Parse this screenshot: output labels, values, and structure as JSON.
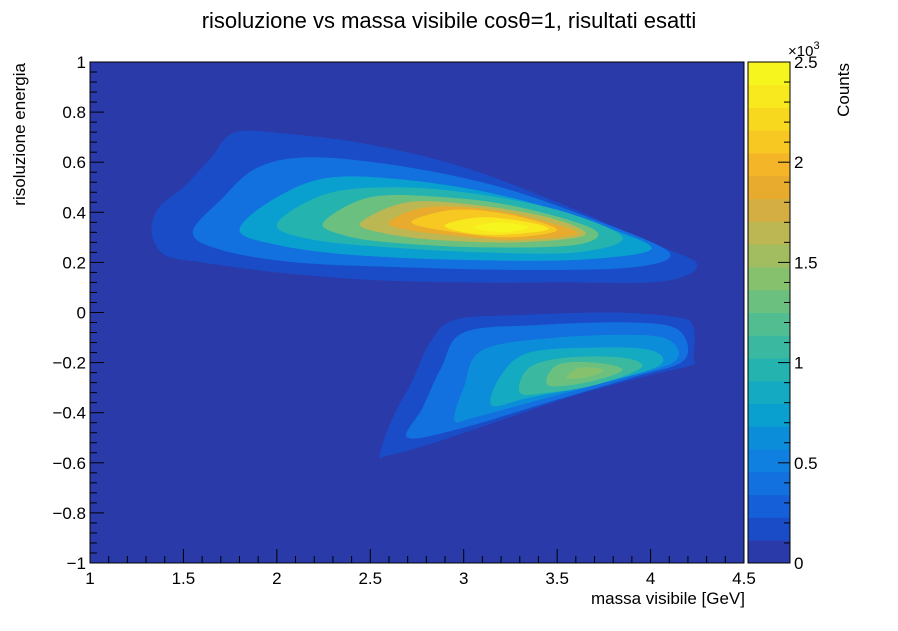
{
  "chart_data": {
    "type": "heatmap",
    "title": "risoluzione vs massa visibile cosθ=1,  risultati esatti",
    "xlabel": "massa visibile [GeV]",
    "ylabel": "risoluzione energia",
    "zlabel": "Counts",
    "zexponent": "×10",
    "zexponent_power": "3",
    "xlim": [
      1,
      4.5
    ],
    "ylim": [
      -1,
      1
    ],
    "zlim": [
      0,
      2.5
    ],
    "x_ticks": [
      {
        "value": 1,
        "label": "1"
      },
      {
        "value": 1.5,
        "label": "1.5"
      },
      {
        "value": 2,
        "label": "2"
      },
      {
        "value": 2.5,
        "label": "2.5"
      },
      {
        "value": 3,
        "label": "3"
      },
      {
        "value": 3.5,
        "label": "3.5"
      },
      {
        "value": 4,
        "label": "4"
      },
      {
        "value": 4.5,
        "label": "4.5"
      }
    ],
    "y_ticks": [
      {
        "value": 1,
        "label": "1"
      },
      {
        "value": 0.8,
        "label": "0.8"
      },
      {
        "value": 0.6,
        "label": "0.6"
      },
      {
        "value": 0.4,
        "label": "0.4"
      },
      {
        "value": 0.2,
        "label": "0.2"
      },
      {
        "value": 0,
        "label": "0"
      },
      {
        "value": -0.2,
        "label": "−0.2"
      },
      {
        "value": -0.4,
        "label": "−0.4"
      },
      {
        "value": -0.6,
        "label": "−0.6"
      },
      {
        "value": -0.8,
        "label": "−0.8"
      },
      {
        "value": -1,
        "label": "−1"
      }
    ],
    "z_ticks": [
      {
        "value": 0,
        "label": "0"
      },
      {
        "value": 0.5,
        "label": "0.5"
      },
      {
        "value": 1,
        "label": "1"
      },
      {
        "value": 1.5,
        "label": "1.5"
      },
      {
        "value": 2,
        "label": "2"
      },
      {
        "value": 2.5,
        "label": "2.5"
      }
    ],
    "palette": [
      "#2a3aa8",
      "#1a4cc8",
      "#1560d8",
      "#1270df",
      "#0f80e0",
      "#0c8dda",
      "#09a0d0",
      "#14aac2",
      "#25b3b0",
      "#3ab9a0",
      "#52bd90",
      "#6cc07f",
      "#86c16e",
      "#a1bd5f",
      "#bcb753",
      "#d4ae42",
      "#e8ab2e",
      "#f4b628",
      "#f7c722",
      "#f8d81e",
      "#f8e81e",
      "#f7f51e"
    ],
    "background_color": "#2a3aa8",
    "regions": [
      {
        "name": "upper-band",
        "peak": {
          "x": 3.15,
          "y": 0.33,
          "z": 2.5
        },
        "boundary": [
          [
            1.33,
            0.32
          ],
          [
            1.37,
            0.42
          ],
          [
            1.5,
            0.5
          ],
          [
            1.65,
            0.62
          ],
          [
            1.78,
            0.72
          ],
          [
            2.1,
            0.71
          ],
          [
            2.5,
            0.67
          ],
          [
            3.0,
            0.58
          ],
          [
            3.5,
            0.44
          ],
          [
            4.0,
            0.28
          ],
          [
            4.2,
            0.22
          ],
          [
            4.25,
            0.19
          ],
          [
            4.2,
            0.15
          ],
          [
            4.0,
            0.12
          ],
          [
            3.5,
            0.12
          ],
          [
            3.0,
            0.12
          ],
          [
            2.5,
            0.13
          ],
          [
            2.0,
            0.16
          ],
          [
            1.6,
            0.2
          ],
          [
            1.4,
            0.23
          ]
        ],
        "levels": [
          {
            "z": 0.15,
            "polygon": [
              [
                1.33,
                0.32
              ],
              [
                1.37,
                0.42
              ],
              [
                1.5,
                0.5
              ],
              [
                1.65,
                0.62
              ],
              [
                1.78,
                0.72
              ],
              [
                2.1,
                0.71
              ],
              [
                2.5,
                0.67
              ],
              [
                3.0,
                0.58
              ],
              [
                3.5,
                0.44
              ],
              [
                4.0,
                0.28
              ],
              [
                4.2,
                0.22
              ],
              [
                4.25,
                0.19
              ],
              [
                4.2,
                0.15
              ],
              [
                4.0,
                0.12
              ],
              [
                3.5,
                0.12
              ],
              [
                3.0,
                0.12
              ],
              [
                2.5,
                0.13
              ],
              [
                2.0,
                0.16
              ],
              [
                1.6,
                0.2
              ],
              [
                1.4,
                0.23
              ]
            ]
          },
          {
            "z": 0.4,
            "polygon": [
              [
                1.55,
                0.32
              ],
              [
                1.7,
                0.45
              ],
              [
                1.9,
                0.58
              ],
              [
                2.2,
                0.62
              ],
              [
                2.7,
                0.58
              ],
              [
                3.2,
                0.5
              ],
              [
                3.7,
                0.37
              ],
              [
                4.1,
                0.24
              ],
              [
                3.9,
                0.18
              ],
              [
                3.3,
                0.17
              ],
              [
                2.7,
                0.18
              ],
              [
                2.1,
                0.2
              ],
              [
                1.7,
                0.25
              ]
            ]
          },
          {
            "z": 0.7,
            "polygon": [
              [
                1.8,
                0.33
              ],
              [
                2.0,
                0.46
              ],
              [
                2.3,
                0.54
              ],
              [
                2.8,
                0.52
              ],
              [
                3.3,
                0.45
              ],
              [
                3.8,
                0.33
              ],
              [
                4.0,
                0.25
              ],
              [
                3.6,
                0.21
              ],
              [
                3.0,
                0.21
              ],
              [
                2.4,
                0.23
              ],
              [
                2.0,
                0.27
              ]
            ]
          },
          {
            "z": 1.0,
            "polygon": [
              [
                2.0,
                0.35
              ],
              [
                2.25,
                0.47
              ],
              [
                2.6,
                0.5
              ],
              [
                3.0,
                0.48
              ],
              [
                3.5,
                0.41
              ],
              [
                3.85,
                0.3
              ],
              [
                3.6,
                0.24
              ],
              [
                3.1,
                0.24
              ],
              [
                2.6,
                0.26
              ],
              [
                2.2,
                0.29
              ]
            ]
          },
          {
            "z": 1.3,
            "polygon": [
              [
                2.25,
                0.36
              ],
              [
                2.5,
                0.46
              ],
              [
                2.9,
                0.46
              ],
              [
                3.3,
                0.42
              ],
              [
                3.7,
                0.33
              ],
              [
                3.6,
                0.27
              ],
              [
                3.1,
                0.26
              ],
              [
                2.6,
                0.28
              ],
              [
                2.35,
                0.31
              ]
            ]
          },
          {
            "z": 1.6,
            "polygon": [
              [
                2.45,
                0.36
              ],
              [
                2.7,
                0.44
              ],
              [
                3.05,
                0.43
              ],
              [
                3.45,
                0.38
              ],
              [
                3.65,
                0.31
              ],
              [
                3.3,
                0.28
              ],
              [
                2.85,
                0.29
              ],
              [
                2.55,
                0.32
              ]
            ]
          },
          {
            "z": 1.9,
            "polygon": [
              [
                2.6,
                0.36
              ],
              [
                2.8,
                0.42
              ],
              [
                3.15,
                0.41
              ],
              [
                3.5,
                0.35
              ],
              [
                3.6,
                0.31
              ],
              [
                3.25,
                0.29
              ],
              [
                2.9,
                0.31
              ],
              [
                2.7,
                0.33
              ]
            ]
          },
          {
            "z": 2.1,
            "polygon": [
              [
                2.72,
                0.36
              ],
              [
                2.95,
                0.41
              ],
              [
                3.25,
                0.39
              ],
              [
                3.5,
                0.33
              ],
              [
                3.25,
                0.3
              ],
              [
                2.95,
                0.32
              ]
            ]
          },
          {
            "z": 2.3,
            "polygon": [
              [
                2.9,
                0.35
              ],
              [
                3.1,
                0.38
              ],
              [
                3.35,
                0.36
              ],
              [
                3.45,
                0.33
              ],
              [
                3.2,
                0.31
              ],
              [
                3.0,
                0.32
              ]
            ]
          },
          {
            "z": 2.45,
            "polygon": [
              [
                3.05,
                0.34
              ],
              [
                3.2,
                0.36
              ],
              [
                3.35,
                0.34
              ],
              [
                3.2,
                0.32
              ]
            ]
          }
        ]
      },
      {
        "name": "lower-band",
        "peak": {
          "x": 3.6,
          "y": -0.23,
          "z": 1.5
        },
        "levels": [
          {
            "z": 0.15,
            "polygon": [
              [
                2.55,
                -0.57
              ],
              [
                2.62,
                -0.42
              ],
              [
                2.72,
                -0.28
              ],
              [
                2.82,
                -0.12
              ],
              [
                2.95,
                -0.03
              ],
              [
                3.3,
                -0.01
              ],
              [
                3.8,
                0.0
              ],
              [
                4.15,
                -0.02
              ],
              [
                4.23,
                -0.06
              ],
              [
                4.23,
                -0.18
              ],
              [
                4.22,
                -0.21
              ],
              [
                4.0,
                -0.25
              ],
              [
                3.6,
                -0.33
              ],
              [
                3.2,
                -0.43
              ],
              [
                2.8,
                -0.53
              ],
              [
                2.6,
                -0.57
              ]
            ]
          },
          {
            "z": 0.35,
            "polygon": [
              [
                2.7,
                -0.5
              ],
              [
                2.78,
                -0.38
              ],
              [
                2.88,
                -0.22
              ],
              [
                3.0,
                -0.08
              ],
              [
                3.4,
                -0.05
              ],
              [
                3.9,
                -0.04
              ],
              [
                4.15,
                -0.07
              ],
              [
                4.18,
                -0.19
              ],
              [
                3.9,
                -0.26
              ],
              [
                3.4,
                -0.37
              ],
              [
                3.0,
                -0.46
              ]
            ]
          },
          {
            "z": 0.6,
            "polygon": [
              [
                2.95,
                -0.43
              ],
              [
                3.0,
                -0.3
              ],
              [
                3.1,
                -0.15
              ],
              [
                3.5,
                -0.1
              ],
              [
                3.95,
                -0.09
              ],
              [
                4.12,
                -0.12
              ],
              [
                4.12,
                -0.2
              ],
              [
                3.8,
                -0.27
              ],
              [
                3.35,
                -0.36
              ],
              [
                3.05,
                -0.42
              ]
            ]
          },
          {
            "z": 0.85,
            "polygon": [
              [
                3.15,
                -0.37
              ],
              [
                3.2,
                -0.25
              ],
              [
                3.35,
                -0.16
              ],
              [
                3.7,
                -0.14
              ],
              [
                4.0,
                -0.15
              ],
              [
                4.05,
                -0.21
              ],
              [
                3.75,
                -0.28
              ],
              [
                3.35,
                -0.34
              ]
            ]
          },
          {
            "z": 1.1,
            "polygon": [
              [
                3.3,
                -0.32
              ],
              [
                3.35,
                -0.22
              ],
              [
                3.55,
                -0.18
              ],
              [
                3.85,
                -0.18
              ],
              [
                3.95,
                -0.22
              ],
              [
                3.7,
                -0.29
              ],
              [
                3.45,
                -0.32
              ]
            ]
          },
          {
            "z": 1.3,
            "polygon": [
              [
                3.45,
                -0.29
              ],
              [
                3.5,
                -0.21
              ],
              [
                3.7,
                -0.2
              ],
              [
                3.85,
                -0.23
              ],
              [
                3.65,
                -0.28
              ]
            ]
          },
          {
            "z": 1.45,
            "polygon": [
              [
                3.55,
                -0.26
              ],
              [
                3.62,
                -0.22
              ],
              [
                3.75,
                -0.23
              ],
              [
                3.65,
                -0.26
              ]
            ]
          }
        ]
      }
    ],
    "grid": false,
    "legend": "colorbar-right"
  }
}
